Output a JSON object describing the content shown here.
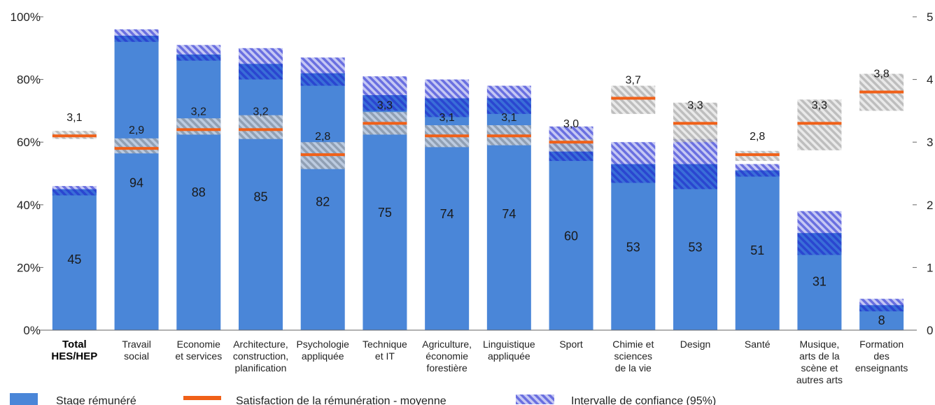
{
  "chart_data": {
    "type": "bar",
    "title": "",
    "xlabel": "",
    "ylabel": "",
    "ylim": [
      0,
      100
    ],
    "y_ticks": [
      "0%",
      "20%",
      "40%",
      "60%",
      "80%",
      "100%"
    ],
    "y2lim": [
      0,
      5
    ],
    "y2_ticks": [
      "0",
      "1",
      "2",
      "3",
      "4",
      "5"
    ],
    "grid": false,
    "legend_position": "bottom",
    "colors": {
      "bar": "#4a86d8",
      "bar_ci": "#2f5fd8",
      "bar_ci_light": "#9aa0ee",
      "satisfaction": "#f06018",
      "sat_ci": "#9a9a9a"
    },
    "categories": [
      {
        "lines": [
          "Total",
          "HES/HEP"
        ],
        "bold": true
      },
      {
        "lines": [
          "Travail",
          "social"
        ]
      },
      {
        "lines": [
          "Economie",
          "et services"
        ]
      },
      {
        "lines": [
          "Architecture,",
          "construction,",
          "planification"
        ]
      },
      {
        "lines": [
          "Psychologie",
          "appliquée"
        ]
      },
      {
        "lines": [
          "Technique",
          "et IT"
        ]
      },
      {
        "lines": [
          "Agriculture,",
          "économie",
          "forestière"
        ]
      },
      {
        "lines": [
          "Linguistique",
          "appliquée"
        ]
      },
      {
        "lines": [
          "Sport"
        ]
      },
      {
        "lines": [
          "Chimie et",
          "sciences",
          "de la vie"
        ]
      },
      {
        "lines": [
          "Design"
        ]
      },
      {
        "lines": [
          "Santé"
        ]
      },
      {
        "lines": [
          "Musique,",
          "arts de la",
          "scène et",
          "autres arts"
        ]
      },
      {
        "lines": [
          "Formation",
          "des",
          "enseignants"
        ]
      }
    ],
    "series": [
      {
        "name": "Stage rémunéré",
        "axis": "left",
        "values": [
          45,
          94,
          88,
          85,
          82,
          75,
          74,
          74,
          60,
          53,
          53,
          51,
          31,
          8
        ],
        "labels": [
          "45",
          "94",
          "88",
          "85",
          "82",
          "75",
          "74",
          "74",
          "60",
          "53",
          "53",
          "51",
          "31",
          "8"
        ],
        "ci_low": [
          43,
          92,
          86,
          80,
          78,
          70,
          68,
          69,
          54,
          47,
          45,
          49,
          24,
          6
        ],
        "ci_high": [
          46,
          96,
          91,
          90,
          87,
          81,
          80,
          78,
          65,
          60,
          61,
          53,
          38,
          10
        ]
      },
      {
        "name": "Satisfaction de la rémunération - moyenne",
        "axis": "right",
        "values": [
          3.1,
          2.9,
          3.2,
          3.2,
          2.8,
          3.3,
          3.1,
          3.1,
          3.0,
          3.7,
          3.3,
          2.8,
          3.3,
          3.8
        ],
        "labels": [
          "3,1",
          "2,9",
          "3,2",
          "3,2",
          "2,8",
          "3,3",
          "3,1",
          "3,1",
          "3,0",
          "3,7",
          "3,3",
          "2,8",
          "3,3",
          "3,8"
        ],
        "ci_low": [
          3.05,
          2.82,
          3.12,
          3.05,
          2.57,
          3.12,
          2.92,
          2.95,
          2.85,
          3.45,
          3.0,
          2.7,
          2.87,
          3.5
        ],
        "ci_high": [
          3.18,
          3.06,
          3.38,
          3.43,
          3.0,
          3.48,
          3.27,
          3.27,
          3.05,
          3.9,
          3.63,
          2.86,
          3.68,
          4.09
        ]
      }
    ],
    "legend": [
      {
        "key": "paid",
        "label": "Stage rémunéré"
      },
      {
        "key": "sat",
        "label": "Satisfaction de la rémunération - moyenne"
      },
      {
        "key": "ci",
        "label": "Intervalle de confiance (95%)"
      }
    ]
  }
}
